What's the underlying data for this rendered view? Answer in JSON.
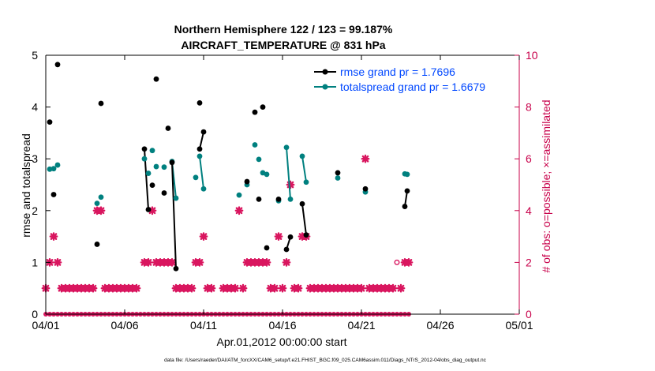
{
  "chart_data": {
    "type": "line",
    "title": "Northern Hemisphere 122 / 123 = 99.187%",
    "subtitle": "AIRCRAFT_TEMPERATURE @ 831 hPa",
    "xlabel": "Apr.01,2012 00:00:00 start",
    "ylabel": "rmse and totalspread",
    "y2label": "# of obs: o=possible; ×=assimilated",
    "footnote": "data file: /Users/raeder/DAI/ATM_forcXX/CAM6_setup/f.e21.FHIST_BGC.f09_025.CAM6assim.011/Diags_NTrS_2012-04/obs_diag_output.nc",
    "xlim": [
      0,
      30
    ],
    "ylim": [
      0,
      5
    ],
    "y2lim": [
      0,
      10
    ],
    "x_ticks": [
      0,
      5,
      10,
      15,
      20,
      25,
      30
    ],
    "x_tick_labels": [
      "04/01",
      "04/06",
      "04/11",
      "04/16",
      "04/21",
      "04/26",
      "05/01"
    ],
    "y_ticks": [
      0,
      1,
      2,
      3,
      4,
      5
    ],
    "y2_ticks": [
      0,
      2,
      4,
      6,
      8,
      10
    ],
    "legend_position": "top-right",
    "colors": {
      "rmse": "#000000",
      "spread": "#00807f",
      "obs": "#d9165f",
      "legend_text": "#0047ff",
      "right_axis": "#c8004a"
    },
    "series": [
      {
        "name": "rmse grand pr = 1.7696",
        "color": "#000000",
        "points": [
          [
            0.25,
            3.71
          ],
          [
            0.5,
            2.31
          ],
          [
            0.75,
            4.82
          ],
          [
            3.25,
            1.35
          ],
          [
            3.5,
            4.07
          ],
          [
            6.75,
            2.49
          ],
          [
            7.0,
            4.54
          ],
          [
            7.5,
            2.34
          ],
          [
            7.75,
            3.59
          ],
          [
            8.0,
            2.93
          ],
          [
            8.25,
            0.88
          ],
          [
            9.75,
            4.08
          ],
          [
            9.75,
            3.19
          ],
          [
            10.0,
            3.52
          ],
          [
            12.75,
            2.56
          ],
          [
            13.25,
            3.9
          ],
          [
            13.5,
            2.22
          ],
          [
            13.75,
            4.0
          ],
          [
            14.0,
            1.28
          ],
          [
            14.75,
            2.22
          ],
          [
            15.25,
            1.25
          ],
          [
            15.5,
            1.49
          ],
          [
            16.25,
            2.13
          ],
          [
            16.5,
            1.53
          ],
          [
            18.5,
            2.73
          ],
          [
            20.25,
            2.42
          ],
          [
            22.75,
            2.08
          ],
          [
            22.9,
            2.38
          ]
        ],
        "segments": [
          [
            [
              6.25,
              3.19
            ],
            [
              6.5,
              2.02
            ]
          ],
          [
            [
              8.0,
              2.93
            ],
            [
              8.25,
              0.88
            ]
          ],
          [
            [
              9.75,
              3.19
            ],
            [
              10.0,
              3.52
            ]
          ],
          [
            [
              15.25,
              1.25
            ],
            [
              15.5,
              1.49
            ]
          ],
          [
            [
              16.25,
              2.13
            ],
            [
              16.5,
              1.53
            ]
          ],
          [
            [
              22.75,
              2.08
            ],
            [
              22.9,
              2.38
            ]
          ]
        ]
      },
      {
        "name": "totalspread grand pr = 1.6679",
        "color": "#00807f",
        "points": [
          [
            0.25,
            2.8
          ],
          [
            0.5,
            2.81
          ],
          [
            0.75,
            2.88
          ],
          [
            3.25,
            2.14
          ],
          [
            3.5,
            2.26
          ],
          [
            6.25,
            3.0
          ],
          [
            6.5,
            2.72
          ],
          [
            6.75,
            3.16
          ],
          [
            7.0,
            2.85
          ],
          [
            7.5,
            2.84
          ],
          [
            8.0,
            2.95
          ],
          [
            8.25,
            2.24
          ],
          [
            9.5,
            2.64
          ],
          [
            9.75,
            3.05
          ],
          [
            10.0,
            2.42
          ],
          [
            12.25,
            2.3
          ],
          [
            12.75,
            2.5
          ],
          [
            13.25,
            3.27
          ],
          [
            13.5,
            2.99
          ],
          [
            13.75,
            2.73
          ],
          [
            14.0,
            2.7
          ],
          [
            14.75,
            2.19
          ],
          [
            15.25,
            3.22
          ],
          [
            15.5,
            2.22
          ],
          [
            16.25,
            3.05
          ],
          [
            16.5,
            2.55
          ],
          [
            18.5,
            2.63
          ],
          [
            20.25,
            2.36
          ],
          [
            22.75,
            2.71
          ],
          [
            22.9,
            2.7
          ]
        ],
        "segments": [
          [
            [
              8.0,
              2.95
            ],
            [
              8.25,
              2.24
            ]
          ],
          [
            [
              9.75,
              3.05
            ],
            [
              10.0,
              2.42
            ]
          ],
          [
            [
              15.25,
              3.22
            ],
            [
              15.5,
              2.22
            ]
          ],
          [
            [
              16.25,
              3.05
            ],
            [
              16.5,
              2.55
            ]
          ],
          [
            [
              22.75,
              2.71
            ],
            [
              22.9,
              2.7
            ]
          ]
        ]
      },
      {
        "name": "# of obs (possible)",
        "color": "#d9165f",
        "axis": "right",
        "open_points": [
          [
            22.25,
            2
          ]
        ]
      },
      {
        "name": "# of obs (assimilated)",
        "color": "#d9165f",
        "axis": "right",
        "points": [
          [
            0.0,
            1
          ],
          [
            0.25,
            2
          ],
          [
            0.5,
            3
          ],
          [
            0.75,
            2
          ],
          [
            1.0,
            1
          ],
          [
            1.25,
            1
          ],
          [
            1.5,
            1
          ],
          [
            1.75,
            1
          ],
          [
            2.0,
            1
          ],
          [
            2.25,
            1
          ],
          [
            2.5,
            1
          ],
          [
            2.75,
            1
          ],
          [
            3.0,
            1
          ],
          [
            3.25,
            4
          ],
          [
            3.5,
            4
          ],
          [
            3.75,
            1
          ],
          [
            4.0,
            1
          ],
          [
            4.25,
            1
          ],
          [
            4.5,
            1
          ],
          [
            4.75,
            1
          ],
          [
            5.0,
            1
          ],
          [
            5.25,
            1
          ],
          [
            5.5,
            1
          ],
          [
            5.75,
            1
          ],
          [
            6.25,
            2
          ],
          [
            6.5,
            2
          ],
          [
            6.75,
            4
          ],
          [
            7.0,
            2
          ],
          [
            7.25,
            2
          ],
          [
            7.5,
            2
          ],
          [
            7.75,
            2
          ],
          [
            8.0,
            2
          ],
          [
            8.25,
            1
          ],
          [
            8.5,
            1
          ],
          [
            8.75,
            1
          ],
          [
            9.0,
            1
          ],
          [
            9.25,
            1
          ],
          [
            9.5,
            2
          ],
          [
            9.75,
            2
          ],
          [
            10.0,
            3
          ],
          [
            10.25,
            1
          ],
          [
            10.5,
            1
          ],
          [
            11.25,
            1
          ],
          [
            11.5,
            1
          ],
          [
            11.75,
            1
          ],
          [
            12.0,
            1
          ],
          [
            12.25,
            4
          ],
          [
            12.5,
            1
          ],
          [
            12.75,
            2
          ],
          [
            13.0,
            2
          ],
          [
            13.25,
            2
          ],
          [
            13.5,
            2
          ],
          [
            13.75,
            2
          ],
          [
            14.0,
            2
          ],
          [
            14.25,
            1
          ],
          [
            14.5,
            1
          ],
          [
            14.75,
            3
          ],
          [
            15.0,
            1
          ],
          [
            15.25,
            2
          ],
          [
            15.5,
            5
          ],
          [
            15.75,
            1
          ],
          [
            16.0,
            1
          ],
          [
            16.25,
            3
          ],
          [
            16.5,
            3
          ],
          [
            16.75,
            1
          ],
          [
            17.0,
            1
          ],
          [
            17.25,
            1
          ],
          [
            17.5,
            1
          ],
          [
            17.75,
            1
          ],
          [
            18.0,
            1
          ],
          [
            18.25,
            1
          ],
          [
            18.5,
            1
          ],
          [
            18.75,
            1
          ],
          [
            19.0,
            1
          ],
          [
            19.25,
            1
          ],
          [
            19.5,
            1
          ],
          [
            19.75,
            1
          ],
          [
            20.0,
            1
          ],
          [
            20.25,
            6
          ],
          [
            20.5,
            1
          ],
          [
            20.75,
            1
          ],
          [
            21.0,
            1
          ],
          [
            21.25,
            1
          ],
          [
            21.5,
            1
          ],
          [
            21.75,
            1
          ],
          [
            22.0,
            1
          ],
          [
            22.5,
            1
          ],
          [
            22.75,
            2
          ],
          [
            23.0,
            2
          ]
        ],
        "zero_line": [
          0.0,
          0.25,
          0.5,
          0.75,
          1.0,
          1.25,
          1.5,
          1.75,
          2.0,
          2.25,
          2.5,
          2.75,
          3.0,
          3.25,
          3.5,
          3.75,
          4.0,
          4.25,
          4.5,
          4.75,
          5.0,
          5.25,
          5.5,
          5.75,
          6.0,
          6.25,
          6.5,
          6.75,
          7.0,
          7.25,
          7.5,
          7.75,
          8.0,
          8.25,
          8.5,
          8.75,
          9.0,
          9.25,
          9.5,
          9.75,
          10.0,
          10.25,
          10.5,
          10.75,
          11.0,
          11.25,
          11.5,
          11.75,
          12.0,
          12.25,
          12.5,
          12.75,
          13.0,
          13.25,
          13.5,
          13.75,
          14.0,
          14.25,
          14.5,
          14.75,
          15.0,
          15.25,
          15.5,
          15.75,
          16.0,
          16.25,
          16.5,
          16.75,
          17.0,
          17.25,
          17.5,
          17.75,
          18.0,
          18.25,
          18.5,
          18.75,
          19.0,
          19.25,
          19.5,
          19.75,
          20.0,
          20.25,
          20.5,
          20.75,
          21.0,
          21.25,
          21.5,
          21.75,
          22.0,
          22.25,
          22.5,
          22.75,
          23.0
        ]
      }
    ]
  }
}
